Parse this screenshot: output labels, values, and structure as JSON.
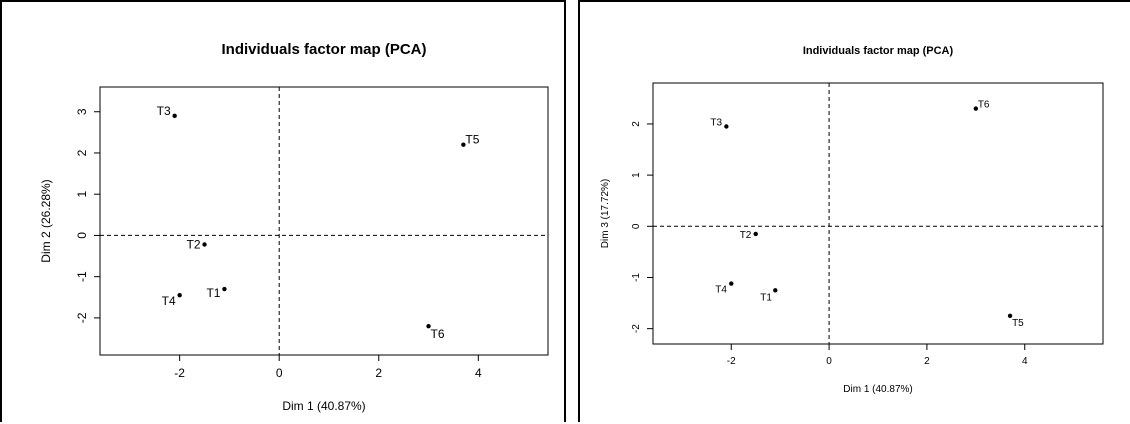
{
  "chart_data": [
    {
      "type": "scatter",
      "title": "Individuals factor map (PCA)",
      "xlabel": "Dim 1 (40.87%)",
      "ylabel": "Dim 2 (26.28%)",
      "xlim": [
        -3.6,
        5.4
      ],
      "ylim": [
        -2.9,
        3.6
      ],
      "xticks": [
        -2,
        0,
        2,
        4
      ],
      "yticks": [
        -2,
        -1,
        0,
        1,
        2,
        3
      ],
      "reference_lines": {
        "x": 0,
        "y": 0
      },
      "points": [
        {
          "label": "T1",
          "x": -1.1,
          "y": -1.3
        },
        {
          "label": "T2",
          "x": -1.5,
          "y": -0.22
        },
        {
          "label": "T3",
          "x": -2.1,
          "y": 2.9
        },
        {
          "label": "T4",
          "x": -2.0,
          "y": -1.45
        },
        {
          "label": "T5",
          "x": 3.7,
          "y": 2.2
        },
        {
          "label": "T6",
          "x": 3.0,
          "y": -2.2
        }
      ]
    },
    {
      "type": "scatter",
      "title": "Individuals factor map (PCA)",
      "xlabel": "Dim 1 (40.87%)",
      "ylabel": "Dim 3 (17.72%)",
      "xlim": [
        -3.6,
        5.6
      ],
      "ylim": [
        -2.3,
        2.8
      ],
      "xticks": [
        -2,
        0,
        2,
        4
      ],
      "yticks": [
        -2,
        -1,
        0,
        1,
        2
      ],
      "reference_lines": {
        "x": 0,
        "y": 0
      },
      "points": [
        {
          "label": "T1",
          "x": -1.1,
          "y": -1.25
        },
        {
          "label": "T2",
          "x": -1.5,
          "y": -0.15
        },
        {
          "label": "T3",
          "x": -2.1,
          "y": 1.95
        },
        {
          "label": "T4",
          "x": -2.0,
          "y": -1.12
        },
        {
          "label": "T5",
          "x": 3.7,
          "y": -1.75
        },
        {
          "label": "T6",
          "x": 3.0,
          "y": 2.3
        }
      ]
    }
  ]
}
